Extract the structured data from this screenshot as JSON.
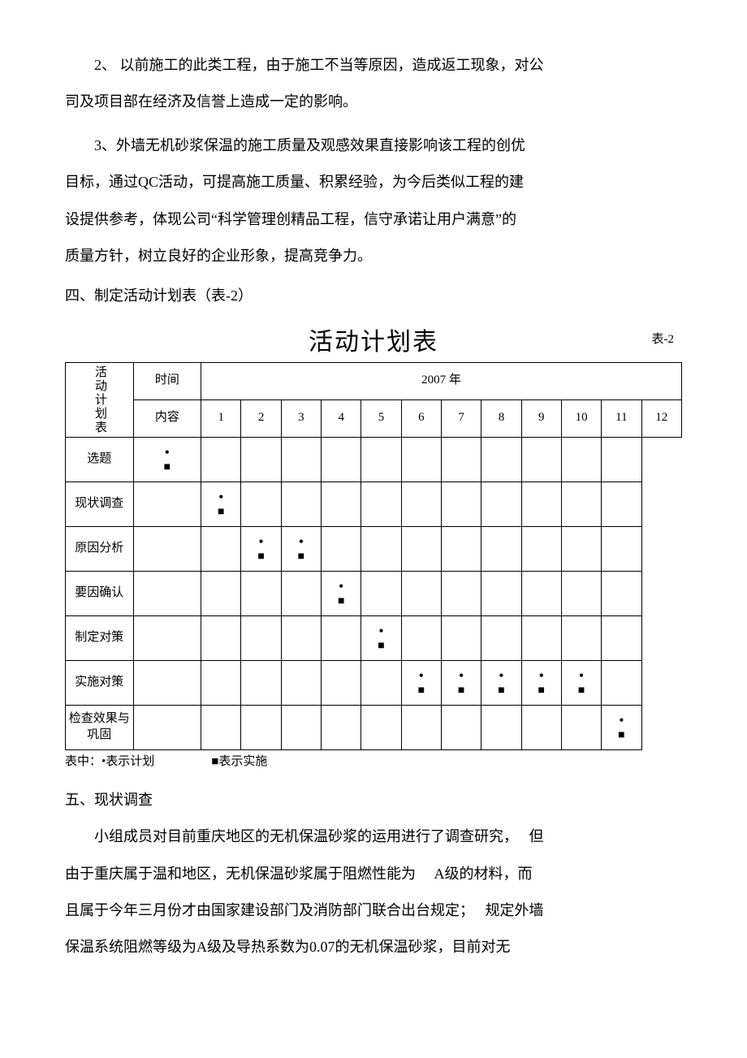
{
  "paragraphs": {
    "p2_line1": "2、 以前施工的此类工程，由于施工不当等原因，造成返工现象，对公",
    "p2_line2": "司及项目部在经济及信誉上造成一定的影响。",
    "p3_line1": "3、外墙无机砂浆保温的施工质量及观感效果直接影响该工程的创优",
    "p3_line2": "目标，通过QC活动，可提高施工质量、积累经验，为今后类似工程的建",
    "p3_line3": "设提供参考，体现公司“科学管理创精品工程，信守承诺让用户满意”的",
    "p3_line4": "质量方针，树立良好的企业形象，提高竞争力。",
    "section4": "四、制定活动计划表（表-2）",
    "table_title": "活动计划表",
    "table_caption": "表-2",
    "legend_prefix": "表中：",
    "legend_plan": "•表示计划",
    "legend_impl": "■表示实施",
    "section5": "五、现状调查",
    "p5_line1": "小组成员对目前重庆地区的无机保温砂浆的运用进行了调查研究，　 但",
    "p5_line2": "由于重庆属于温和地区，无机保温砂浆属于阻燃性能为　 A级的材料，而",
    "p5_line3": "且属于今年三月份才由国家建设部门及消防部门联合出台规定；　 规定外墙",
    "p5_line4": "保温系统阻燃等级为A级及导热系数为0.07的无机保温砂浆，目前对无"
  },
  "table": {
    "side_label": "活动计划表",
    "header_time": "时间",
    "header_content": "内容",
    "year_header": "2007 年",
    "months": [
      "1",
      "2",
      "3",
      "4",
      "5",
      "6",
      "7",
      "8",
      "9",
      "10",
      "11",
      "12"
    ],
    "rows": [
      {
        "label": "选题",
        "marks": [
          1,
          0,
          0,
          0,
          0,
          0,
          0,
          0,
          0,
          0,
          0,
          0
        ]
      },
      {
        "label": "现状调查",
        "marks": [
          0,
          1,
          0,
          0,
          0,
          0,
          0,
          0,
          0,
          0,
          0,
          0
        ]
      },
      {
        "label": "原因分析",
        "marks": [
          0,
          0,
          1,
          1,
          0,
          0,
          0,
          0,
          0,
          0,
          0,
          0
        ]
      },
      {
        "label": "要因确认",
        "marks": [
          0,
          0,
          0,
          0,
          1,
          0,
          0,
          0,
          0,
          0,
          0,
          0
        ]
      },
      {
        "label": "制定对策",
        "marks": [
          0,
          0,
          0,
          0,
          0,
          1,
          0,
          0,
          0,
          0,
          0,
          0
        ]
      },
      {
        "label": "实施对策",
        "marks": [
          0,
          0,
          0,
          0,
          0,
          0,
          1,
          1,
          1,
          1,
          1,
          0
        ]
      },
      {
        "label": "检查效果与巩固",
        "marks": [
          0,
          0,
          0,
          0,
          0,
          0,
          0,
          0,
          0,
          0,
          0,
          1
        ]
      }
    ],
    "mark_plan_glyph": "•",
    "mark_impl_glyph": "■"
  }
}
